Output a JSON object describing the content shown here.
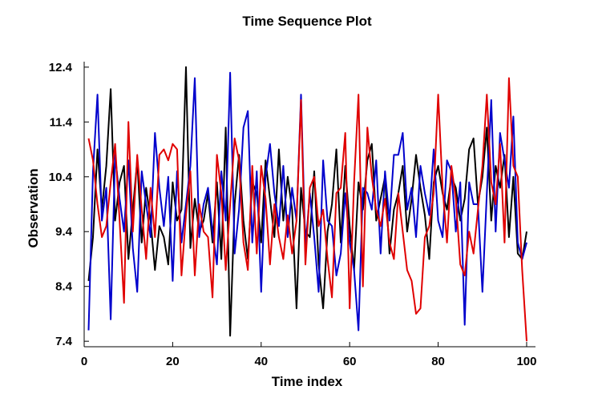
{
  "chart_data": {
    "type": "line",
    "title": "Time Sequence Plot",
    "xlabel": "Time index",
    "ylabel": "Observation",
    "xlim": [
      0,
      102
    ],
    "ylim": [
      7.3,
      12.5
    ],
    "x_ticks": [
      0,
      20,
      40,
      60,
      80,
      100
    ],
    "y_ticks": [
      7.4,
      8.4,
      9.4,
      10.4,
      11.4,
      12.4
    ],
    "y_tick_labels": [
      "7.4",
      "8.4",
      "9.4",
      "10.4",
      "11.4",
      "12.4"
    ],
    "grid": false,
    "x": [
      1,
      2,
      3,
      4,
      5,
      6,
      7,
      8,
      9,
      10,
      11,
      12,
      13,
      14,
      15,
      16,
      17,
      18,
      19,
      20,
      21,
      22,
      23,
      24,
      25,
      26,
      27,
      28,
      29,
      30,
      31,
      32,
      33,
      34,
      35,
      36,
      37,
      38,
      39,
      40,
      41,
      42,
      43,
      44,
      45,
      46,
      47,
      48,
      49,
      50,
      51,
      52,
      53,
      54,
      55,
      56,
      57,
      58,
      59,
      60,
      61,
      62,
      63,
      64,
      65,
      66,
      67,
      68,
      69,
      70,
      71,
      72,
      73,
      74,
      75,
      76,
      77,
      78,
      79,
      80,
      81,
      82,
      83,
      84,
      85,
      86,
      87,
      88,
      89,
      90,
      91,
      92,
      93,
      94,
      95,
      96,
      97,
      98,
      99,
      100
    ],
    "series": [
      {
        "color": "#000000",
        "values": [
          8.5,
          9.3,
          10.9,
          9.8,
          10.6,
          12.0,
          9.6,
          10.3,
          10.6,
          8.9,
          9.8,
          10.7,
          9.2,
          10.2,
          9.6,
          8.7,
          9.5,
          9.3,
          8.8,
          10.3,
          9.6,
          9.8,
          12.4,
          9.1,
          10.0,
          9.4,
          9.6,
          10.1,
          9.2,
          10.3,
          8.9,
          11.3,
          7.5,
          9.9,
          10.8,
          9.6,
          8.9,
          10.3,
          10.1,
          9.2,
          10.7,
          10.0,
          9.3,
          10.9,
          9.6,
          10.4,
          9.8,
          8.0,
          10.2,
          9.4,
          9.3,
          10.5,
          8.8,
          8.0,
          9.4,
          9.9,
          10.9,
          9.2,
          10.6,
          9.5,
          8.7,
          10.3,
          9.8,
          10.7,
          11.0,
          9.6,
          10.0,
          10.4,
          9.0,
          9.8,
          10.1,
          10.6,
          9.4,
          10.0,
          10.8,
          10.2,
          9.7,
          8.9,
          10.3,
          10.6,
          10.1,
          9.8,
          10.4,
          10.2,
          9.6,
          10.0,
          10.9,
          11.1,
          9.9,
          10.4,
          11.3,
          9.6,
          10.6,
          10.2,
          10.8,
          9.3,
          10.4,
          9.0,
          8.9,
          9.4
        ]
      },
      {
        "color": "#0000cc",
        "values": [
          7.6,
          10.5,
          11.9,
          9.6,
          10.2,
          7.8,
          10.8,
          10.0,
          9.4,
          10.7,
          9.1,
          8.3,
          10.5,
          9.9,
          9.3,
          11.2,
          10.2,
          9.5,
          10.4,
          8.5,
          10.5,
          9.2,
          9.9,
          10.6,
          12.2,
          9.3,
          9.9,
          10.2,
          9.4,
          8.8,
          10.5,
          9.6,
          12.3,
          9.0,
          9.8,
          11.3,
          11.6,
          9.2,
          10.5,
          8.3,
          10.4,
          11.0,
          10.1,
          9.5,
          10.6,
          9.3,
          10.2,
          9.6,
          11.9,
          9.1,
          10.1,
          9.3,
          8.3,
          10.7,
          9.6,
          9.5,
          8.6,
          9.0,
          10.1,
          9.2,
          8.7,
          7.6,
          10.2,
          10.1,
          9.8,
          10.7,
          9.0,
          10.5,
          9.6,
          10.8,
          10.8,
          11.2,
          9.8,
          10.2,
          9.3,
          10.6,
          10.1,
          9.7,
          10.9,
          9.6,
          9.3,
          10.7,
          10.5,
          9.4,
          10.3,
          7.7,
          10.3,
          9.9,
          9.9,
          8.3,
          10.1,
          11.8,
          9.4,
          11.2,
          10.7,
          10.2,
          11.5,
          9.2,
          8.9,
          9.2
        ]
      },
      {
        "color": "#e00000",
        "values": [
          11.1,
          10.7,
          9.9,
          9.3,
          9.5,
          10.3,
          11.0,
          9.6,
          8.1,
          11.4,
          9.4,
          10.8,
          9.8,
          8.9,
          10.2,
          9.3,
          10.8,
          10.9,
          10.7,
          11.0,
          10.9,
          8.6,
          9.7,
          10.5,
          8.6,
          9.9,
          9.4,
          9.3,
          8.2,
          10.8,
          10.1,
          8.7,
          9.9,
          11.1,
          10.7,
          9.2,
          8.7,
          10.6,
          9.0,
          10.6,
          10.0,
          8.8,
          9.9,
          9.3,
          8.9,
          9.7,
          9.0,
          9.6,
          11.8,
          8.8,
          10.2,
          10.4,
          9.5,
          9.8,
          8.9,
          8.2,
          10.1,
          10.2,
          11.2,
          8.0,
          10.3,
          11.9,
          8.4,
          11.3,
          10.4,
          9.8,
          9.5,
          10.0,
          9.2,
          8.9,
          10.1,
          9.4,
          8.7,
          8.5,
          7.9,
          8.0,
          9.3,
          9.5,
          10.1,
          11.9,
          10.2,
          9.2,
          10.6,
          10.0,
          8.8,
          8.6,
          9.4,
          9.0,
          9.8,
          10.6,
          11.9,
          10.3,
          9.9,
          11.0,
          9.2,
          12.2,
          10.6,
          10.4,
          8.7,
          7.4
        ]
      }
    ]
  }
}
